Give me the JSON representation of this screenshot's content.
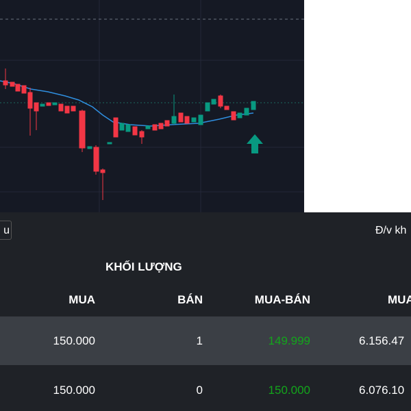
{
  "toolbar": {
    "button": "u",
    "unit_note": "Đ/v kh"
  },
  "table": {
    "group_header": "KHỐI LƯỢNG",
    "headers": [
      "MUA",
      "BÁN",
      "MUA-BÁN",
      "MUA"
    ],
    "rows": [
      [
        "150.000",
        "1",
        "149.999",
        "6.156.47"
      ],
      [
        "150.000",
        "0",
        "150.000",
        "6.076.10"
      ]
    ]
  }
}
